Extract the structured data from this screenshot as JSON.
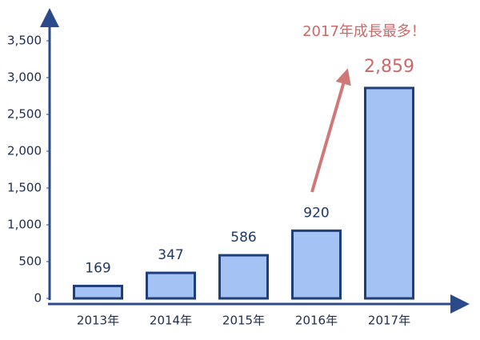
{
  "chart_data": {
    "type": "bar",
    "annotation": "2017年成長最多！",
    "categories": [
      "2013年",
      "2014年",
      "2015年",
      "2016年",
      "2017年"
    ],
    "values": [
      169,
      347,
      586,
      920,
      2859
    ],
    "value_labels": [
      "169",
      "347",
      "586",
      "920",
      "2,859"
    ],
    "color": "#a4c2f4",
    "ylim": [
      0,
      3500
    ],
    "yticks": [
      0,
      500,
      {
        "value": 1000,
        "label": "1,000"
      },
      {
        "value": 1500,
        "label": "1,500"
      },
      {
        "value": 2000,
        "label": "2,000"
      },
      {
        "value": 2500,
        "label": "2,500"
      },
      {
        "value": 3000,
        "label": "3,000"
      },
      {
        "value": 3500,
        "label": "3,500"
      }
    ],
    "grid": false
  }
}
